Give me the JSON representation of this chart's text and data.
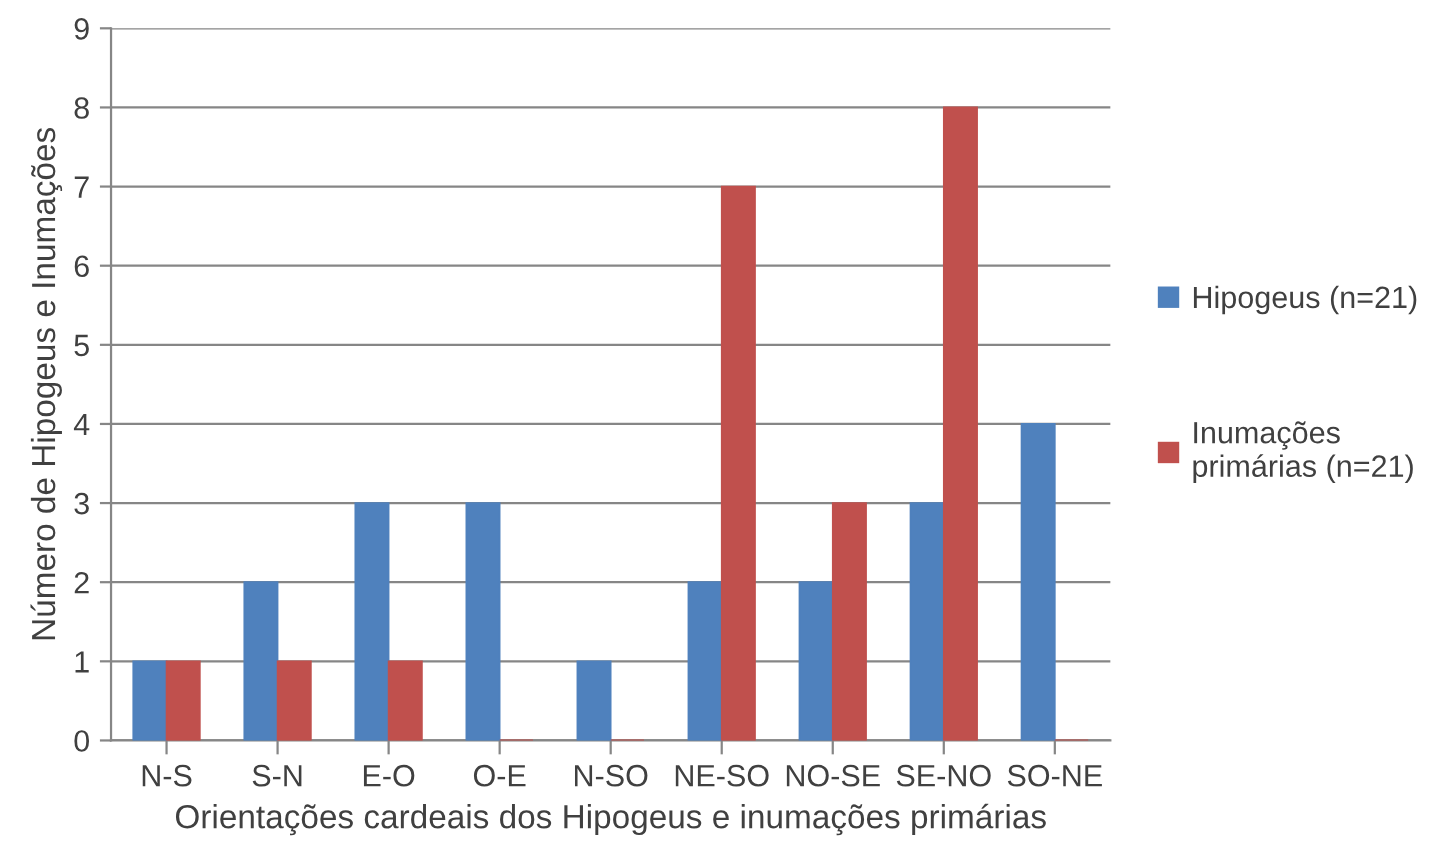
{
  "chart_data": {
    "type": "bar",
    "xlabel": "Orientações cardeais dos Hipogeus e inumações primárias",
    "ylabel": "Número de Hipogeus e Inumações",
    "categories": [
      "N-S",
      "S-N",
      "E-O",
      "O-E",
      "N-SO",
      "NE-SO",
      "NO-SE",
      "SE-NO",
      "SO-NE"
    ],
    "series": [
      {
        "name": "Hipogeus (n=21)",
        "color": "#4f81bd",
        "values": [
          1,
          2,
          3,
          3,
          1,
          2,
          2,
          3,
          4
        ]
      },
      {
        "name": "Inumações\nprimárias (n=21)",
        "color": "#c0504d",
        "values": [
          1,
          1,
          1,
          0,
          0,
          7,
          3,
          8,
          0
        ]
      }
    ],
    "ylim": [
      0,
      9
    ],
    "yticks": [
      0,
      1,
      2,
      3,
      4,
      5,
      6,
      7,
      8,
      9
    ],
    "grid": "y",
    "legend": "right"
  }
}
